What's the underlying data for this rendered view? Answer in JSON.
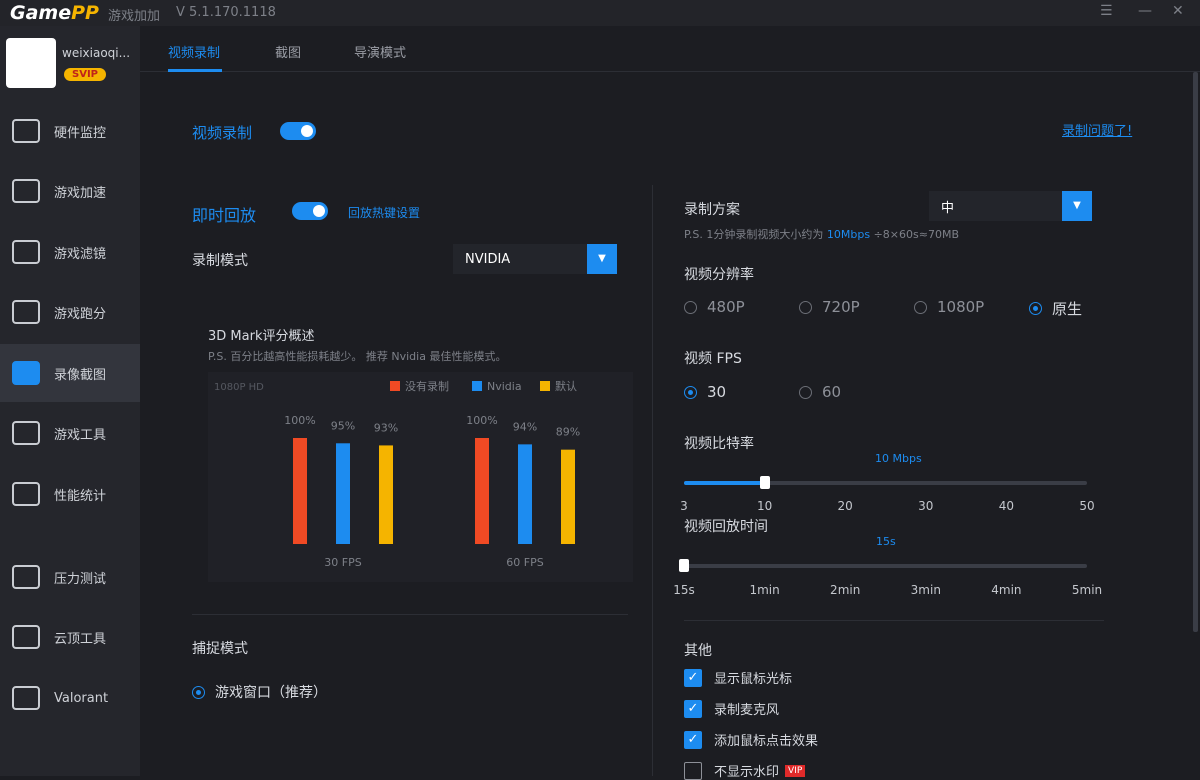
{
  "app": {
    "logo_a": "Game",
    "logo_b": "PP",
    "name": "游戏加加",
    "version": "V 5.1.170.1118"
  },
  "user": {
    "name": "weixiaoqi...",
    "badge": "SVIP"
  },
  "sidebar": {
    "items": [
      {
        "label": "硬件监控",
        "icon": "hardware-monitor-icon"
      },
      {
        "label": "游戏加速",
        "icon": "rocket-icon"
      },
      {
        "label": "游戏滤镜",
        "icon": "filter-icon"
      },
      {
        "label": "游戏跑分",
        "icon": "speedometer-icon"
      },
      {
        "label": "录像截图",
        "icon": "camera-icon",
        "active": true
      },
      {
        "label": "游戏工具",
        "icon": "toolbox-icon"
      },
      {
        "label": "性能统计",
        "icon": "chart-icon"
      },
      {
        "label": "压力测试",
        "icon": "flask-icon"
      },
      {
        "label": "云顶工具",
        "icon": "tft-icon"
      },
      {
        "label": "Valorant",
        "icon": "valorant-icon"
      }
    ]
  },
  "tabs": [
    "视频录制",
    "截图",
    "导演模式"
  ],
  "main": {
    "record_label": "视频录制",
    "help_link": "录制问题了!",
    "replay_label": "即时回放",
    "replay_settings": "回放热键设置",
    "mode_label": "录制模式",
    "mode_value": "NVIDIA",
    "chart_title": "3D Mark评分概述",
    "chart_note": "P.S. 百分比越高性能损耗越少。 推荐 Nvidia 最佳性能模式。",
    "capture_label": "捕捉模式",
    "capture_option": "游戏窗口（推荐）",
    "plan_label": "录制方案",
    "plan_value": "中",
    "plan_note_a": "P.S. 1分钟录制视频大小约为",
    "plan_note_b": "10Mbps",
    "plan_note_c": "÷8×60s≈70MB",
    "res_label": "视频分辨率",
    "res_options": [
      "480P",
      "720P",
      "1080P",
      "原生"
    ],
    "res_selected": "原生",
    "fps_label": "视频 FPS",
    "fps_options": [
      "30",
      "60"
    ],
    "fps_selected": "30",
    "bitrate_label": "视频比特率",
    "bitrate_value": "10 Mbps",
    "bitrate_ticks": [
      "3",
      "10",
      "20",
      "30",
      "40",
      "50"
    ],
    "bitrate_level": 10,
    "replay_time_label": "视频回放时间",
    "replay_time_value": "15s",
    "replay_ticks": [
      "15s",
      "1min",
      "2min",
      "3min",
      "4min",
      "5min"
    ],
    "other_label": "其他",
    "others": [
      {
        "label": "显示鼠标光标",
        "checked": true
      },
      {
        "label": "录制麦克风",
        "checked": true
      },
      {
        "label": "添加鼠标点击效果",
        "checked": true
      },
      {
        "label": "不显示水印",
        "checked": false,
        "badge": "VIP"
      }
    ]
  },
  "chart_data": {
    "type": "bar",
    "title": "3D Mark评分概述",
    "corner_label": "1080P HD",
    "categories": [
      "30 FPS",
      "60 FPS"
    ],
    "series": [
      {
        "name": "没有录制",
        "color": "#f04a24",
        "values": [
          100,
          100
        ]
      },
      {
        "name": "Nvidia",
        "color": "#1d8cf0",
        "values": [
          95,
          94
        ]
      },
      {
        "name": "默认",
        "color": "#f5b400",
        "values": [
          93,
          89
        ]
      }
    ],
    "ylim": [
      0,
      100
    ],
    "legend": "top-right",
    "value_labels": [
      [
        "100%",
        "100%"
      ],
      [
        "95%",
        "94%"
      ],
      [
        "93%",
        "89%"
      ]
    ]
  }
}
